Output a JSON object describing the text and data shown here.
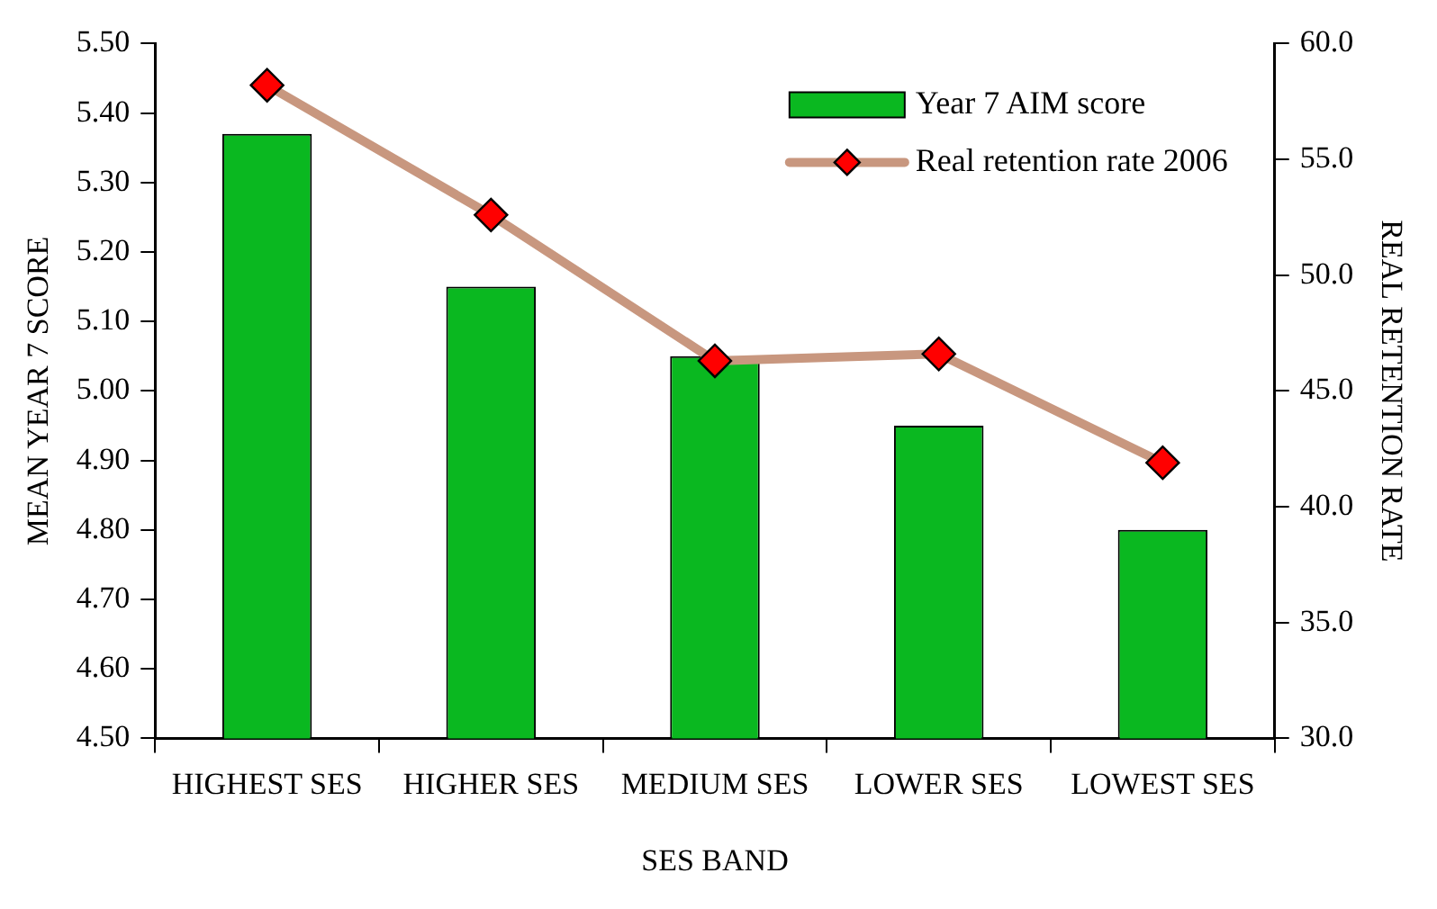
{
  "chart_data": {
    "type": "bar",
    "xlabel": "SES BAND",
    "ylabel": "MEAN YEAR 7 SCORE",
    "y2label": "REAL RETENTION RATE",
    "categories": [
      "HIGHEST SES",
      "HIGHER SES",
      "MEDIUM SES",
      "LOWER SES",
      "LOWEST SES"
    ],
    "series": [
      {
        "name": "Year 7 AIM score",
        "color": "#0ab820",
        "values": [
          5.37,
          5.15,
          5.05,
          4.95,
          4.8
        ]
      },
      {
        "name": "Real retention rate 2006",
        "type": "line",
        "axis": "y2",
        "color": "#c8977f",
        "marker": "diamond",
        "values": [
          58.2,
          52.6,
          46.3,
          46.6,
          41.9
        ]
      }
    ],
    "ylim": [
      4.5,
      5.5
    ],
    "yticks": [
      {
        "value": 4.5,
        "label": "4.50"
      },
      {
        "value": 4.6,
        "label": "4.60"
      },
      {
        "value": 4.7,
        "label": "4.70"
      },
      {
        "value": 4.8,
        "label": "4.80"
      },
      {
        "value": 4.9,
        "label": "4.90"
      },
      {
        "value": 5.0,
        "label": "5.00"
      },
      {
        "value": 5.1,
        "label": "5.10"
      },
      {
        "value": 5.2,
        "label": "5.20"
      },
      {
        "value": 5.3,
        "label": "5.30"
      },
      {
        "value": 5.4,
        "label": "5.40"
      },
      {
        "value": 5.5,
        "label": "5.50"
      }
    ],
    "y2lim": [
      30,
      60
    ],
    "y2ticks": [
      {
        "value": 30,
        "label": "30.0"
      },
      {
        "value": 35,
        "label": "35.0"
      },
      {
        "value": 40,
        "label": "40.0"
      },
      {
        "value": 45,
        "label": "45.0"
      },
      {
        "value": 50,
        "label": "50.0"
      },
      {
        "value": 55,
        "label": "55.0"
      },
      {
        "value": 60,
        "label": "60.0"
      }
    ],
    "legend": "top right"
  }
}
